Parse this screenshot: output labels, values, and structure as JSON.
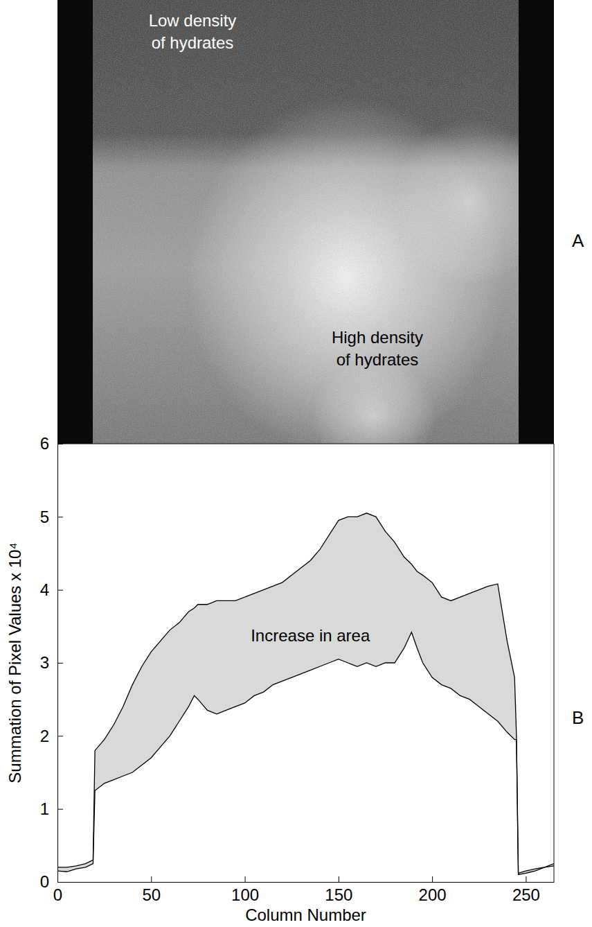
{
  "image_panel": {
    "label": "A",
    "annotations": [
      {
        "lines": [
          "Low density",
          "of hydrates"
        ],
        "color": "#ffffff"
      },
      {
        "lines": [
          "High density",
          "of hydrates"
        ],
        "color": "#000000"
      }
    ]
  },
  "chart_data": {
    "type": "area",
    "panel_label": "B",
    "color": "#d9d9d9",
    "x_label": "Column Number",
    "y_label": "Summation of Pixel Values x 10⁴",
    "xlim": [
      0,
      265
    ],
    "xticks": [
      0,
      50,
      100,
      150,
      200,
      250
    ],
    "ylim": [
      0,
      6
    ],
    "yticks": [
      0,
      1,
      2,
      3,
      4,
      5,
      6
    ],
    "annotations": [
      {
        "text": "Increase in area",
        "x": 135,
        "y": 3.35
      }
    ],
    "x": [
      0,
      5,
      10,
      15,
      19,
      20,
      25,
      30,
      35,
      40,
      45,
      50,
      55,
      60,
      65,
      70,
      73,
      75,
      80,
      85,
      90,
      95,
      100,
      105,
      110,
      115,
      120,
      125,
      130,
      135,
      140,
      145,
      150,
      155,
      160,
      165,
      170,
      175,
      180,
      185,
      189,
      192,
      195,
      200,
      205,
      210,
      215,
      220,
      225,
      230,
      235,
      240,
      244,
      245,
      246,
      250,
      255,
      260,
      265
    ],
    "series": [
      {
        "type": "line",
        "color": "#000000",
        "values": [
          0.2,
          0.2,
          0.22,
          0.25,
          0.3,
          1.8,
          1.95,
          2.15,
          2.4,
          2.7,
          2.95,
          3.15,
          3.3,
          3.45,
          3.55,
          3.7,
          3.75,
          3.8,
          3.8,
          3.85,
          3.85,
          3.85,
          3.9,
          3.95,
          4.0,
          4.05,
          4.1,
          4.2,
          4.3,
          4.4,
          4.55,
          4.75,
          4.95,
          5.0,
          5.0,
          5.05,
          5.0,
          4.8,
          4.65,
          4.45,
          4.35,
          4.25,
          4.2,
          4.1,
          3.9,
          3.85,
          3.9,
          3.95,
          4.0,
          4.05,
          4.08,
          3.3,
          2.8,
          2.0,
          0.12,
          0.15,
          0.18,
          0.2,
          0.25
        ]
      },
      {
        "type": "line",
        "color": "#000000",
        "values": [
          0.15,
          0.14,
          0.18,
          0.2,
          0.25,
          1.25,
          1.35,
          1.4,
          1.45,
          1.5,
          1.6,
          1.7,
          1.85,
          2.0,
          2.2,
          2.4,
          2.55,
          2.5,
          2.35,
          2.3,
          2.35,
          2.4,
          2.45,
          2.55,
          2.6,
          2.7,
          2.75,
          2.8,
          2.85,
          2.9,
          2.95,
          3.0,
          3.05,
          3.0,
          2.95,
          3.0,
          2.95,
          3.0,
          3.0,
          3.2,
          3.42,
          3.2,
          3.0,
          2.8,
          2.7,
          2.65,
          2.55,
          2.5,
          2.4,
          2.3,
          2.2,
          2.05,
          1.95,
          1.95,
          0.1,
          0.12,
          0.15,
          0.2,
          0.22
        ]
      }
    ]
  }
}
